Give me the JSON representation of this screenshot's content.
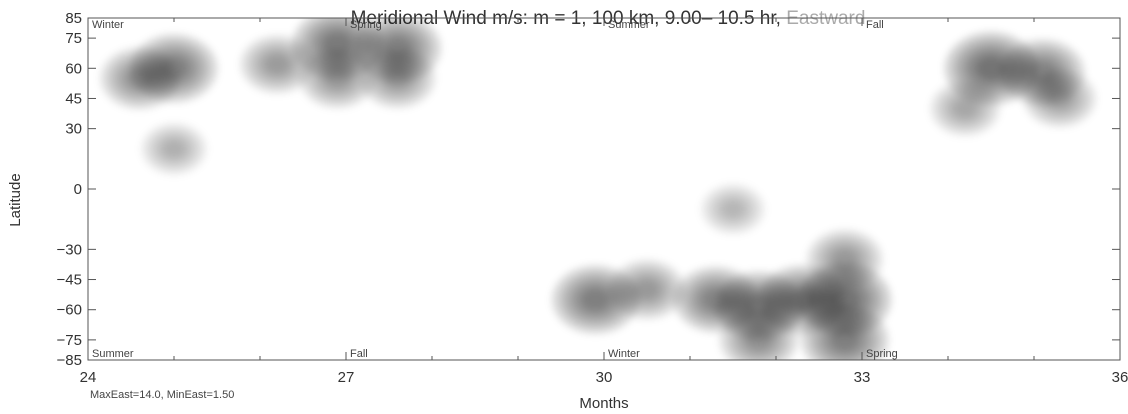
{
  "chart_data": {
    "type": "heatmap",
    "title": "Meridional Wind m/s: m = 1, 100 km,  9.00– 10.5 hr,",
    "title_suffix": "Eastward",
    "xlabel": "Months",
    "ylabel": "Latitude",
    "x_ticks": [
      24,
      27,
      30,
      33,
      36
    ],
    "y_ticks": [
      85,
      75,
      60,
      45,
      30,
      0,
      -30,
      -45,
      -60,
      -75,
      -85
    ],
    "xlim": [
      24,
      36
    ],
    "ylim": [
      -85,
      85
    ],
    "footnote": "MaxEast=14.0, MinEast=1.50",
    "max_value": 14.0,
    "min_value": 1.5,
    "season_labels_top": [
      {
        "text": "Winter",
        "month": 24
      },
      {
        "text": "Spring",
        "month": 27
      },
      {
        "text": "Summer",
        "month": 30
      },
      {
        "text": "Fall",
        "month": 33
      }
    ],
    "season_labels_bottom": [
      {
        "text": "Summer",
        "month": 24
      },
      {
        "text": "Fall",
        "month": 27
      },
      {
        "text": "Winter",
        "month": 30
      },
      {
        "text": "Spring",
        "month": 33
      }
    ],
    "blobs": [
      {
        "month": 25.0,
        "lat": 60,
        "value": 12.0
      },
      {
        "month": 24.6,
        "lat": 55,
        "value": 9.0
      },
      {
        "month": 25.0,
        "lat": 20,
        "value": 4.5
      },
      {
        "month": 26.2,
        "lat": 62,
        "value": 7.5
      },
      {
        "month": 26.9,
        "lat": 72,
        "value": 13.0
      },
      {
        "month": 27.6,
        "lat": 70,
        "value": 12.0
      },
      {
        "month": 26.9,
        "lat": 55,
        "value": 8.0
      },
      {
        "month": 27.6,
        "lat": 55,
        "value": 8.0
      },
      {
        "month": 29.9,
        "lat": -55,
        "value": 12.0
      },
      {
        "month": 30.5,
        "lat": -50,
        "value": 8.0
      },
      {
        "month": 31.3,
        "lat": -55,
        "value": 11.0
      },
      {
        "month": 31.8,
        "lat": -58,
        "value": 12.0
      },
      {
        "month": 32.3,
        "lat": -55,
        "value": 12.0
      },
      {
        "month": 32.8,
        "lat": -55,
        "value": 14.0
      },
      {
        "month": 32.8,
        "lat": -75,
        "value": 12.0
      },
      {
        "month": 31.8,
        "lat": -75,
        "value": 9.0
      },
      {
        "month": 32.8,
        "lat": -35,
        "value": 8.0
      },
      {
        "month": 31.5,
        "lat": -10,
        "value": 4.0
      },
      {
        "month": 34.5,
        "lat": 60,
        "value": 14.0
      },
      {
        "month": 35.1,
        "lat": 58,
        "value": 11.0
      },
      {
        "month": 34.2,
        "lat": 40,
        "value": 6.0
      },
      {
        "month": 35.3,
        "lat": 45,
        "value": 7.0
      }
    ],
    "colors": {
      "axis": "#555555",
      "fill": "#000000",
      "title_suffix": "#aaaaaa"
    }
  }
}
